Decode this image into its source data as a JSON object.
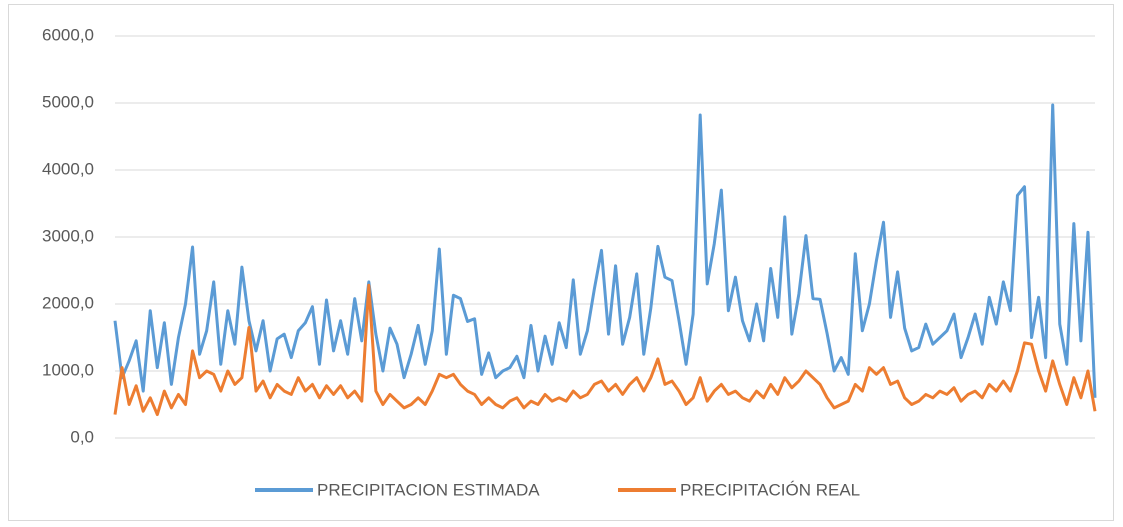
{
  "chart_data": {
    "type": "line",
    "categories": [
      null,
      null,
      null,
      null,
      null,
      null,
      null,
      null,
      null,
      null,
      null,
      null,
      null,
      null,
      null,
      null,
      null,
      null,
      null,
      null,
      null,
      null,
      null,
      null,
      null,
      null,
      null,
      null,
      null,
      null,
      null,
      null,
      null,
      null,
      null,
      null,
      null,
      null,
      null,
      null,
      null,
      null,
      null,
      null,
      null,
      null,
      null,
      null,
      null,
      null,
      null,
      null,
      null,
      null,
      null,
      null,
      null,
      null,
      null,
      null,
      null,
      null,
      null,
      null,
      null,
      null,
      null,
      null,
      null,
      null,
      null,
      null,
      null,
      null,
      null,
      null,
      null,
      null,
      null,
      null,
      null,
      null,
      null,
      null,
      null,
      null,
      null,
      null,
      null,
      null,
      null,
      null,
      null,
      null,
      null,
      null,
      null,
      null,
      null,
      null,
      null,
      null,
      null,
      null,
      null,
      null,
      null,
      null,
      null,
      null,
      null,
      null,
      null,
      null,
      null,
      null,
      null,
      null,
      null,
      null,
      null,
      null,
      null,
      null,
      null,
      null,
      null,
      null,
      null,
      null,
      null,
      null,
      null,
      null,
      null,
      null,
      null,
      null,
      null,
      null
    ],
    "series": [
      {
        "name": "PRECIPITACION ESTIMADA",
        "color": "#5b9bd5",
        "values": [
          1750,
          900,
          1150,
          1450,
          700,
          1900,
          1050,
          1720,
          800,
          1500,
          2000,
          2850,
          1250,
          1600,
          2330,
          1100,
          1900,
          1400,
          2550,
          1750,
          1300,
          1750,
          1000,
          1480,
          1550,
          1200,
          1600,
          1720,
          1960,
          1100,
          2060,
          1300,
          1750,
          1250,
          2080,
          1450,
          2330,
          1550,
          1000,
          1640,
          1400,
          900,
          1250,
          1680,
          1100,
          1600,
          2820,
          1250,
          2130,
          2080,
          1740,
          1780,
          950,
          1270,
          900,
          1000,
          1050,
          1220,
          900,
          1680,
          1000,
          1520,
          1100,
          1720,
          1350,
          2360,
          1250,
          1600,
          2230,
          2800,
          1550,
          2570,
          1400,
          1800,
          2450,
          1250,
          1940,
          2860,
          2400,
          2350,
          1750,
          1100,
          1850,
          4820,
          2300,
          2900,
          3700,
          1900,
          2400,
          1750,
          1450,
          2000,
          1450,
          2530,
          1800,
          3300,
          1550,
          2150,
          3020,
          2080,
          2070,
          1560,
          1000,
          1200,
          950,
          2750,
          1600,
          2000,
          2650,
          3220,
          1800,
          2480,
          1640,
          1300,
          1350,
          1700,
          1400,
          1500,
          1600,
          1850,
          1200,
          1500,
          1850,
          1400,
          2100,
          1700,
          2330,
          1900,
          3620,
          3750,
          1500,
          2100,
          1200,
          4970,
          1700,
          1100,
          3200,
          1450,
          3070,
          600
        ]
      },
      {
        "name": "PRECIPITACIÓN REAL",
        "color": "#ed7d31",
        "values": [
          350,
          1050,
          500,
          780,
          400,
          600,
          350,
          700,
          450,
          650,
          500,
          1300,
          900,
          1000,
          950,
          700,
          1000,
          800,
          900,
          1650,
          700,
          850,
          600,
          800,
          700,
          650,
          900,
          700,
          800,
          600,
          780,
          650,
          780,
          600,
          700,
          550,
          2280,
          700,
          500,
          650,
          550,
          450,
          500,
          600,
          500,
          700,
          950,
          900,
          950,
          800,
          700,
          650,
          500,
          600,
          500,
          450,
          550,
          600,
          450,
          550,
          500,
          650,
          550,
          600,
          550,
          700,
          600,
          650,
          800,
          850,
          700,
          800,
          650,
          800,
          900,
          700,
          900,
          1180,
          800,
          850,
          700,
          500,
          600,
          900,
          550,
          700,
          800,
          650,
          700,
          600,
          550,
          700,
          600,
          800,
          650,
          900,
          750,
          850,
          1000,
          900,
          800,
          600,
          450,
          500,
          550,
          800,
          700,
          1050,
          950,
          1050,
          800,
          850,
          600,
          500,
          550,
          650,
          600,
          700,
          650,
          750,
          550,
          650,
          700,
          600,
          800,
          700,
          850,
          700,
          1000,
          1420,
          1400,
          1000,
          700,
          1150,
          800,
          500,
          900,
          600,
          1000,
          400
        ]
      }
    ],
    "ylim": [
      0,
      6000
    ],
    "yticks": [
      {
        "value": 0,
        "label": "0,0"
      },
      {
        "value": 1000,
        "label": "1000,0"
      },
      {
        "value": 2000,
        "label": "2000,0"
      },
      {
        "value": 3000,
        "label": "3000,0"
      },
      {
        "value": 4000,
        "label": "4000,0"
      },
      {
        "value": 5000,
        "label": "5000,0"
      },
      {
        "value": 6000,
        "label": "6000,0"
      }
    ],
    "grid": true,
    "legend": "bottom"
  }
}
